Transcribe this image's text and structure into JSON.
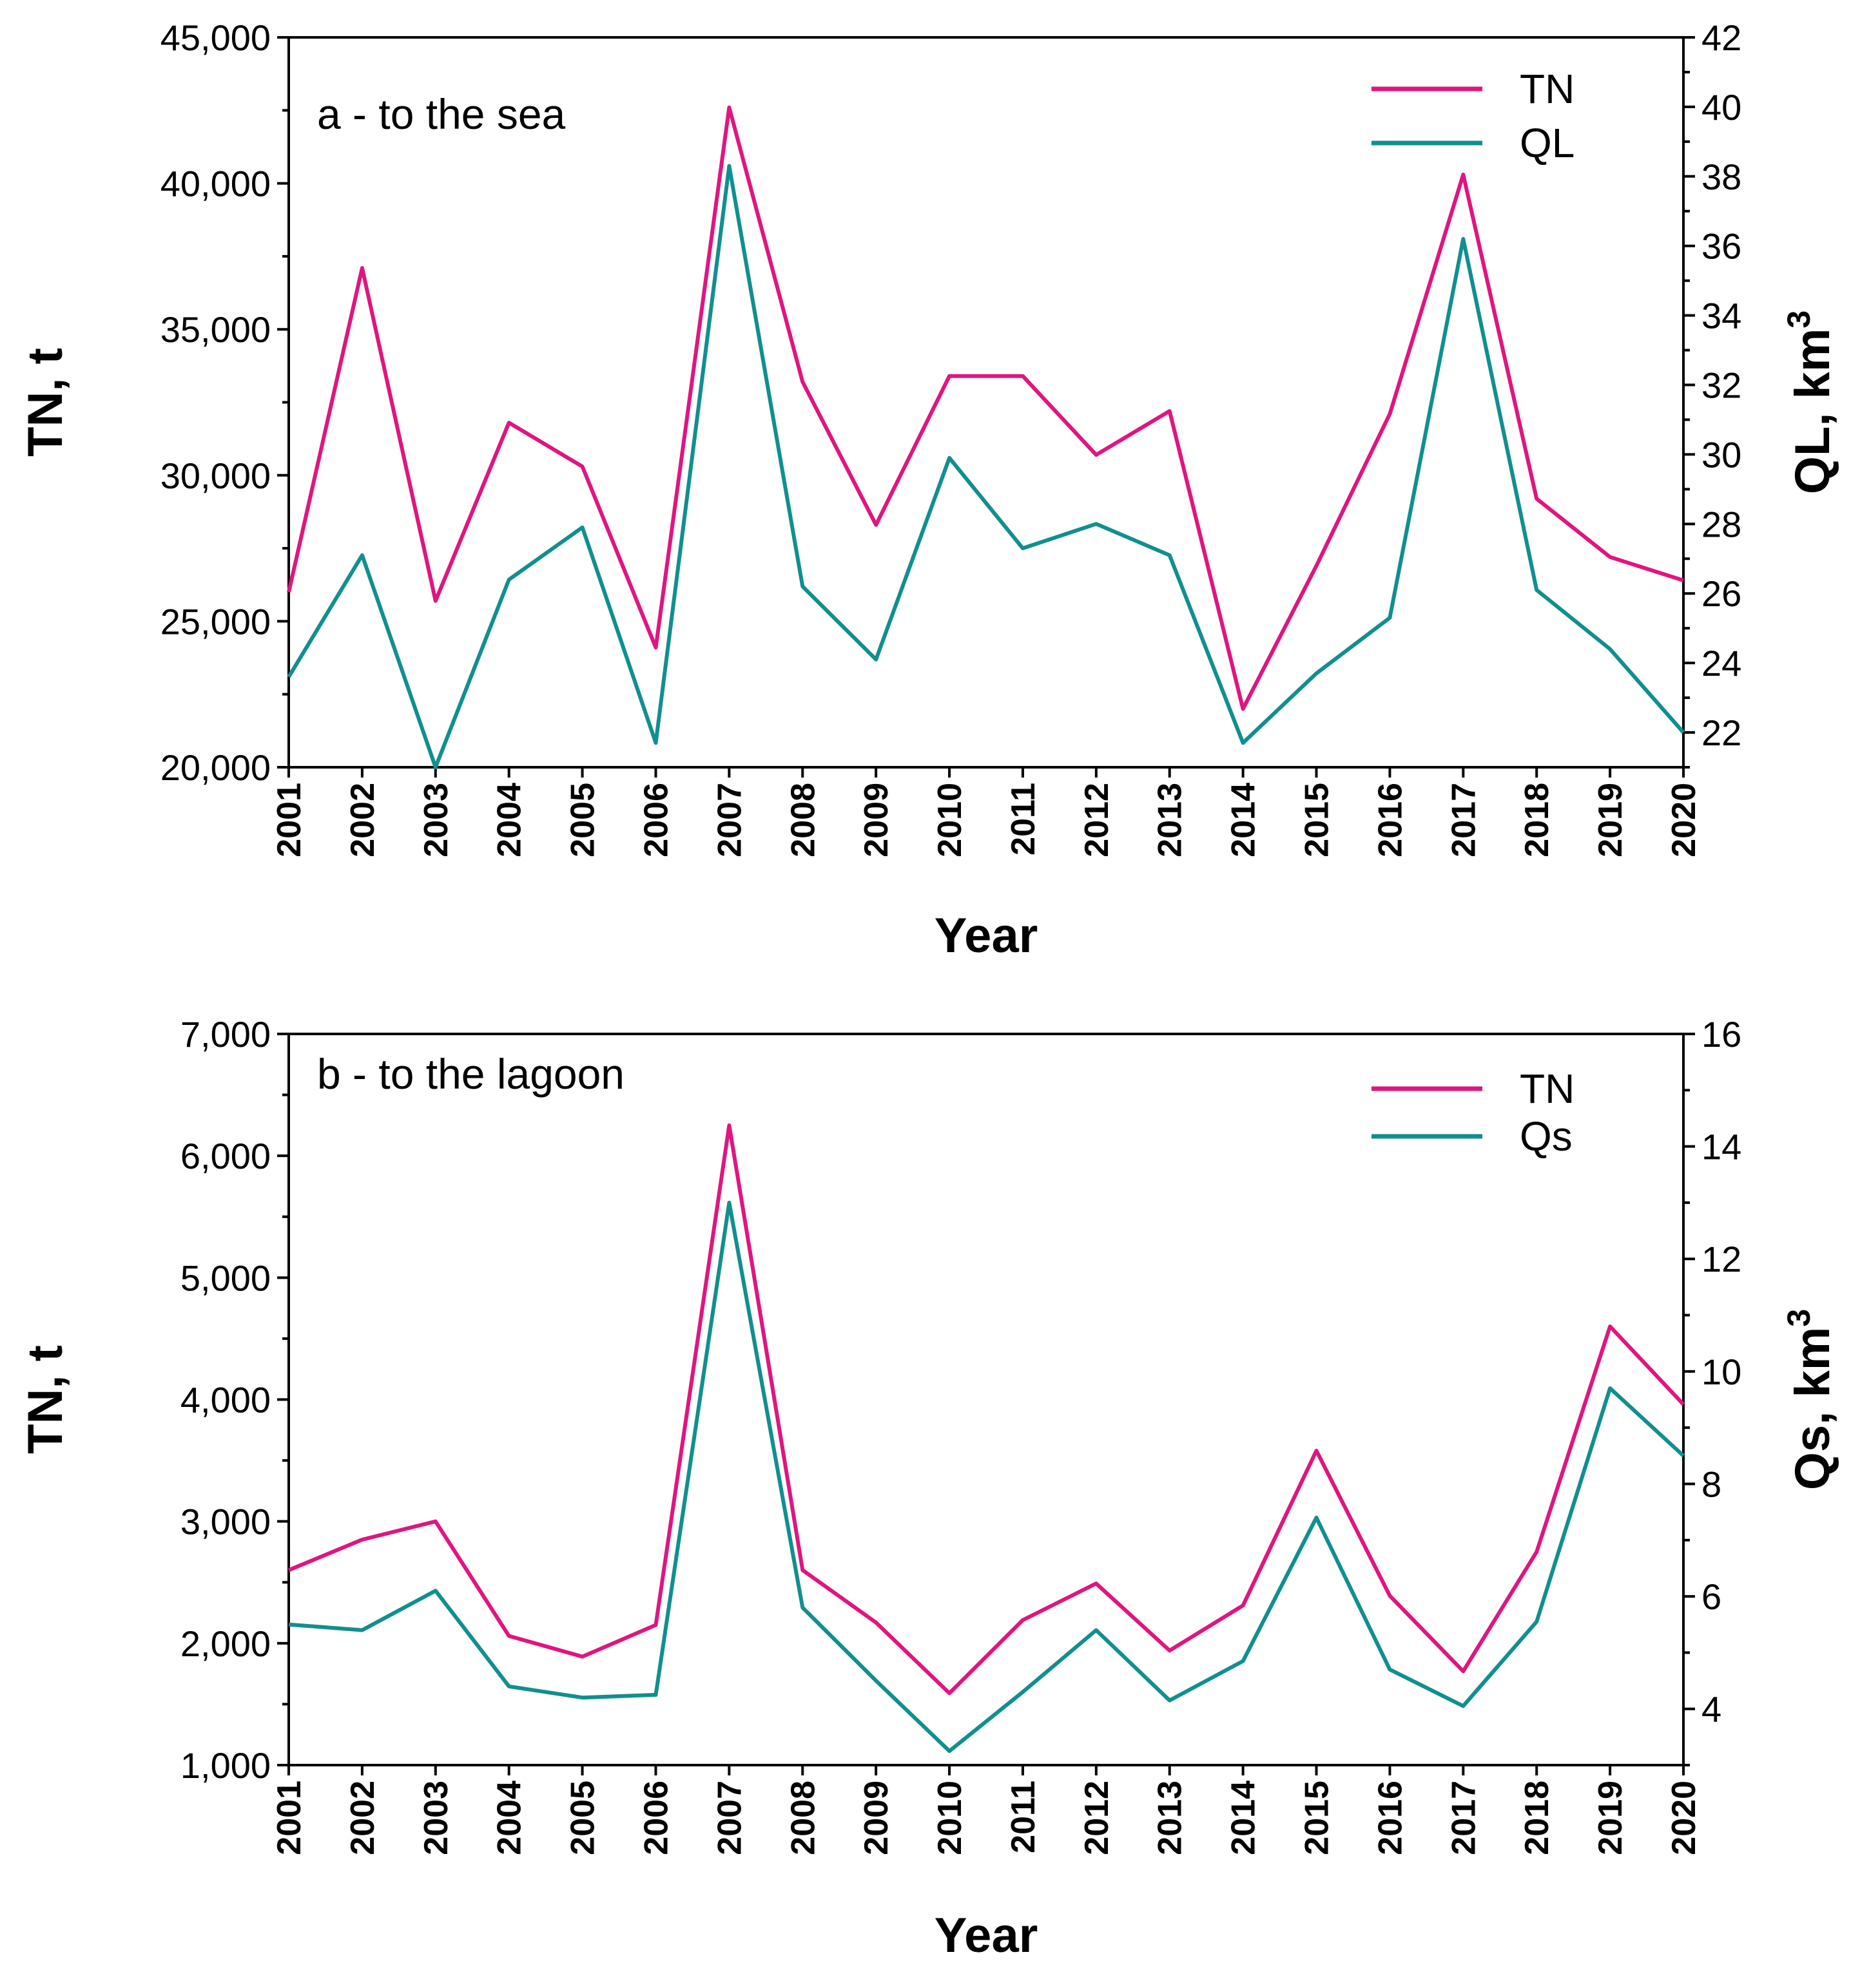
{
  "chart_data": [
    {
      "type": "line",
      "title": "a - to the sea",
      "xlabel": "Year",
      "ylabel_left": "TN, t",
      "ylabel_right": "QL, km",
      "ylabel_right_sup": "3",
      "categories": [
        "2001",
        "2002",
        "2003",
        "2004",
        "2005",
        "2006",
        "2007",
        "2008",
        "2009",
        "2010",
        "2011",
        "2012",
        "2013",
        "2014",
        "2015",
        "2016",
        "2017",
        "2018",
        "2019",
        "2020"
      ],
      "ylim_left": [
        20000,
        45000
      ],
      "yticks_left": [
        20000,
        25000,
        30000,
        35000,
        40000,
        45000
      ],
      "ytick_labels_left": [
        "20,000",
        "25,000",
        "30,000",
        "35,000",
        "40,000",
        "45,000"
      ],
      "ylim_right": [
        21,
        42
      ],
      "yticks_right": [
        22,
        24,
        26,
        28,
        30,
        32,
        34,
        36,
        38,
        40,
        42
      ],
      "ytick_labels_right": [
        "22",
        "24",
        "26",
        "28",
        "30",
        "32",
        "34",
        "36",
        "38",
        "40",
        "42"
      ],
      "legend_position": "top-right",
      "series": [
        {
          "name": "TN",
          "axis": "left",
          "color": "#e0157f",
          "values": [
            26000,
            37100,
            25700,
            31800,
            30300,
            24100,
            42600,
            33200,
            28300,
            33400,
            33400,
            30700,
            32200,
            22000,
            26900,
            32100,
            40300,
            29200,
            27200,
            26400
          ]
        },
        {
          "name": "QL",
          "axis": "right",
          "color": "#118f8f",
          "values": [
            23.6,
            27.1,
            21.0,
            26.4,
            27.9,
            21.7,
            38.3,
            26.2,
            24.1,
            29.9,
            27.3,
            28.0,
            27.1,
            21.7,
            23.7,
            25.3,
            36.2,
            26.1,
            24.4,
            22.0
          ]
        }
      ]
    },
    {
      "type": "line",
      "title": "b - to the lagoon",
      "xlabel": "Year",
      "ylabel_left": "TN, t",
      "ylabel_right": "Qs, km",
      "ylabel_right_sup": "3",
      "categories": [
        "2001",
        "2002",
        "2003",
        "2004",
        "2005",
        "2006",
        "2007",
        "2008",
        "2009",
        "2010",
        "2011",
        "2012",
        "2013",
        "2014",
        "2015",
        "2016",
        "2017",
        "2018",
        "2019",
        "2020"
      ],
      "ylim_left": [
        1000,
        7000
      ],
      "yticks_left": [
        1000,
        2000,
        3000,
        4000,
        5000,
        6000,
        7000
      ],
      "ytick_labels_left": [
        "1,000",
        "2,000",
        "3,000",
        "4,000",
        "5,000",
        "6,000",
        "7,000"
      ],
      "ylim_right": [
        3,
        16
      ],
      "yticks_right": [
        4,
        6,
        8,
        10,
        12,
        14,
        16
      ],
      "ytick_labels_right": [
        "4",
        "6",
        "8",
        "10",
        "12",
        "14",
        "16"
      ],
      "legend_position": "top-right",
      "series": [
        {
          "name": "TN",
          "axis": "left",
          "color": "#e0157f",
          "values": [
            2600,
            2850,
            3000,
            2060,
            1890,
            2150,
            6250,
            2600,
            2170,
            1590,
            2190,
            2490,
            1940,
            2310,
            3580,
            2390,
            1770,
            2750,
            4600,
            3960
          ]
        },
        {
          "name": "Qs",
          "axis": "right",
          "color": "#118f8f",
          "values": [
            5.5,
            5.4,
            6.1,
            4.4,
            4.2,
            4.25,
            13.0,
            5.8,
            4.5,
            3.25,
            4.3,
            5.4,
            4.15,
            4.85,
            7.4,
            4.7,
            4.05,
            5.55,
            9.7,
            8.5
          ]
        }
      ]
    }
  ]
}
